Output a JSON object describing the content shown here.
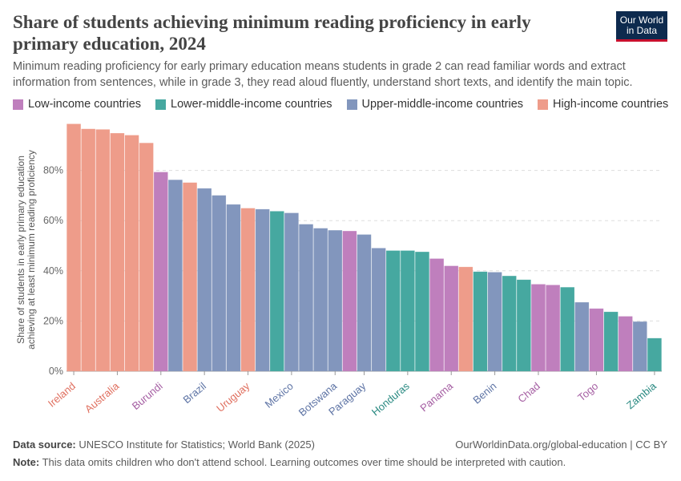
{
  "header": {
    "title": "Share of students achieving minimum reading proficiency in early primary education, 2024",
    "subtitle": "Minimum reading proficiency for early primary education means students in grade 2 can read familiar words and extract information from sentences, while in grade 3, they read aloud fluently, understand short texts, and identify the main topic.",
    "logo_line1": "Our World",
    "logo_line2": "in Data"
  },
  "legend": [
    {
      "label": "Low-income countries",
      "color": "#bf7fbd"
    },
    {
      "label": "Lower-middle-income countries",
      "color": "#46a8a0"
    },
    {
      "label": "Upper-middle-income countries",
      "color": "#8296bd"
    },
    {
      "label": "High-income countries",
      "color": "#ee9c8a"
    }
  ],
  "footer": {
    "source_label": "Data source:",
    "source_text": "UNESCO Institute for Statistics; World Bank (2025)",
    "url": "OurWorldinData.org/global-education | CC BY",
    "note_label": "Note:",
    "note_text": "This data omits children who don't attend school. Learning outcomes over time should be interpreted with caution."
  },
  "chart_data": {
    "type": "bar",
    "ylabel": "Share of students in early primary education achieving at least minimum reading proficiency",
    "ylim": [
      0,
      100
    ],
    "yticks": [
      0,
      20,
      40,
      60,
      80
    ],
    "ytick_labels": [
      "0%",
      "20%",
      "40%",
      "60%",
      "80%"
    ],
    "grid": true,
    "group_colors": {
      "high": "#ee9c8a",
      "upper": "#8296bd",
      "lower": "#46a8a0",
      "low": "#bf7fbd"
    },
    "label_colors": {
      "high": "#e07060",
      "upper": "#5e74a5",
      "lower": "#2a8a82",
      "low": "#a55fa3"
    },
    "bars": [
      {
        "label": "Ireland",
        "value": 98.5,
        "group": "high"
      },
      {
        "label": "",
        "value": 96.5,
        "group": "high"
      },
      {
        "label": "",
        "value": 96.3,
        "group": "high"
      },
      {
        "label": "Australia",
        "value": 94.8,
        "group": "high"
      },
      {
        "label": "",
        "value": 94.0,
        "group": "high"
      },
      {
        "label": "",
        "value": 90.9,
        "group": "high"
      },
      {
        "label": "Burundi",
        "value": 79.3,
        "group": "low"
      },
      {
        "label": "",
        "value": 76.2,
        "group": "upper"
      },
      {
        "label": "",
        "value": 75.1,
        "group": "high"
      },
      {
        "label": "Brazil",
        "value": 72.8,
        "group": "upper"
      },
      {
        "label": "",
        "value": 70.0,
        "group": "upper"
      },
      {
        "label": "",
        "value": 66.4,
        "group": "upper"
      },
      {
        "label": "Uruguay",
        "value": 64.9,
        "group": "high"
      },
      {
        "label": "",
        "value": 64.5,
        "group": "upper"
      },
      {
        "label": "",
        "value": 63.7,
        "group": "lower"
      },
      {
        "label": "Mexico",
        "value": 63.0,
        "group": "upper"
      },
      {
        "label": "",
        "value": 58.5,
        "group": "upper"
      },
      {
        "label": "",
        "value": 56.9,
        "group": "upper"
      },
      {
        "label": "Botswana",
        "value": 56.1,
        "group": "upper"
      },
      {
        "label": "",
        "value": 55.8,
        "group": "low"
      },
      {
        "label": "Paraguay",
        "value": 54.4,
        "group": "upper"
      },
      {
        "label": "",
        "value": 49.0,
        "group": "upper"
      },
      {
        "label": "",
        "value": 48.0,
        "group": "lower"
      },
      {
        "label": "Honduras",
        "value": 48.0,
        "group": "lower"
      },
      {
        "label": "",
        "value": 47.5,
        "group": "lower"
      },
      {
        "label": "",
        "value": 44.8,
        "group": "low"
      },
      {
        "label": "Panama",
        "value": 41.9,
        "group": "low"
      },
      {
        "label": "",
        "value": 41.5,
        "group": "high"
      },
      {
        "label": "",
        "value": 39.6,
        "group": "lower"
      },
      {
        "label": "Benin",
        "value": 39.4,
        "group": "upper"
      },
      {
        "label": "",
        "value": 37.9,
        "group": "lower"
      },
      {
        "label": "",
        "value": 36.4,
        "group": "lower"
      },
      {
        "label": "Chad",
        "value": 34.6,
        "group": "low"
      },
      {
        "label": "",
        "value": 34.3,
        "group": "low"
      },
      {
        "label": "",
        "value": 33.4,
        "group": "lower"
      },
      {
        "label": "",
        "value": 27.4,
        "group": "upper"
      },
      {
        "label": "Togo",
        "value": 24.9,
        "group": "low"
      },
      {
        "label": "",
        "value": 23.6,
        "group": "lower"
      },
      {
        "label": "",
        "value": 21.8,
        "group": "low"
      },
      {
        "label": "",
        "value": 19.7,
        "group": "upper"
      },
      {
        "label": "Zambia",
        "value": 13.1,
        "group": "lower"
      }
    ]
  }
}
